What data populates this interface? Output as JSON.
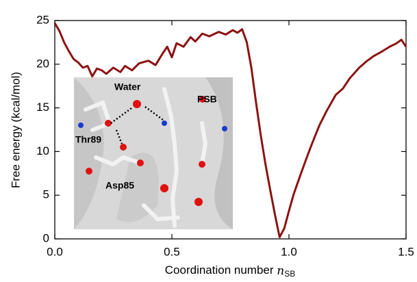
{
  "chart_data": {
    "type": "line",
    "x_label": "Coordination number",
    "x_label_symbol": "n",
    "x_label_subscript": "SB",
    "y_label": "Free energy (kcal/mol)",
    "color": "#8b1111",
    "x": [
      0.0,
      0.02,
      0.04,
      0.06,
      0.08,
      0.1,
      0.12,
      0.14,
      0.16,
      0.18,
      0.2,
      0.22,
      0.25,
      0.28,
      0.3,
      0.33,
      0.36,
      0.4,
      0.43,
      0.46,
      0.48,
      0.5,
      0.52,
      0.55,
      0.58,
      0.6,
      0.63,
      0.66,
      0.7,
      0.73,
      0.76,
      0.78,
      0.8,
      0.82,
      0.84,
      0.86,
      0.88,
      0.9,
      0.92,
      0.94,
      0.96,
      0.98,
      1.0,
      1.02,
      1.05,
      1.08,
      1.1,
      1.13,
      1.16,
      1.2,
      1.23,
      1.26,
      1.3,
      1.33,
      1.36,
      1.4,
      1.43,
      1.46,
      1.48,
      1.5
    ],
    "values": [
      24.7,
      23.8,
      22.5,
      21.5,
      20.6,
      20.2,
      19.6,
      19.8,
      18.6,
      19.5,
      19.3,
      18.9,
      19.6,
      19.1,
      19.8,
      19.3,
      20.1,
      20.4,
      19.9,
      21.2,
      22.0,
      20.8,
      22.4,
      22.0,
      23.1,
      22.6,
      23.5,
      23.2,
      23.7,
      23.4,
      23.9,
      23.6,
      24.0,
      22.5,
      19.5,
      15.5,
      11.8,
      8.5,
      5.6,
      2.8,
      0.2,
      1.2,
      3.2,
      5.1,
      7.4,
      9.6,
      11.0,
      13.0,
      14.6,
      16.5,
      17.2,
      18.4,
      19.6,
      20.3,
      20.9,
      21.5,
      22.0,
      22.4,
      22.8,
      22.0
    ],
    "xlim": [
      0,
      1.5
    ],
    "ylim": [
      0,
      25
    ],
    "xticks": [
      {
        "value": 0,
        "label": "0.0"
      },
      0.5,
      {
        "value": 1,
        "label": "1.0"
      },
      1.5
    ],
    "yticks": [
      0,
      5,
      10,
      15,
      20,
      25
    ],
    "grid": false,
    "inset_labels": [
      "Water",
      "PSB",
      "Thr89",
      "Asp85"
    ]
  }
}
